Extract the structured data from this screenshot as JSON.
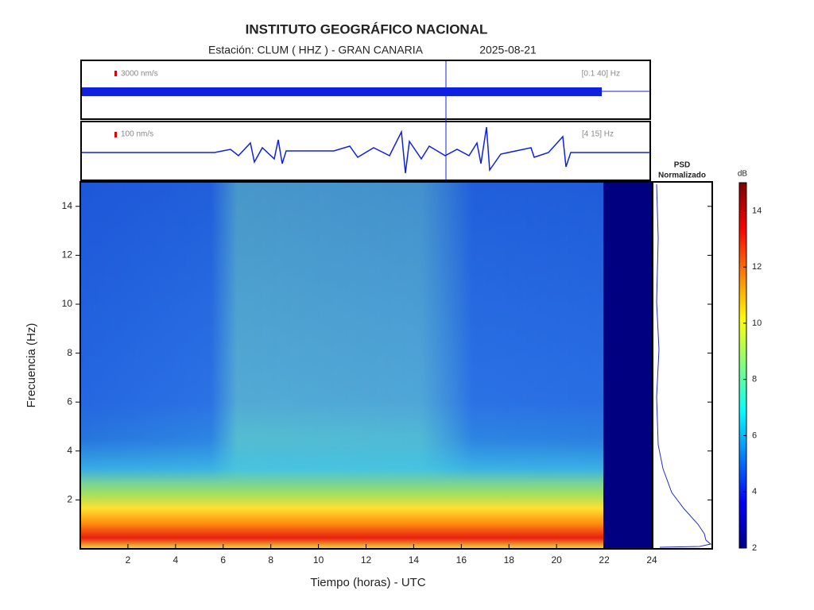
{
  "chart_data": {
    "type": "spectrogram",
    "title": "INSTITUTO GEOGRÁFICO NACIONAL",
    "subtitle": "Estación:  CLUM ( HHZ ) - GRAN CANARIA",
    "date": "2025-08-21",
    "x_label": "Tiempo (horas) - UTC",
    "y_label": "Frecuencia  (Hz)",
    "xlim": [
      0,
      24
    ],
    "xticks": [
      2,
      4,
      6,
      8,
      10,
      12,
      14,
      16,
      18,
      20,
      22,
      24
    ],
    "ylim": [
      0,
      15
    ],
    "yticks": [
      2,
      4,
      6,
      8,
      10,
      12,
      14
    ],
    "traces": [
      {
        "scale": "3000 nm/s",
        "band": "[0.1 40] Hz"
      },
      {
        "scale": "100 nm/s",
        "band": "[4 15] Hz"
      }
    ],
    "psd_title": [
      "PSD",
      "Normalizado"
    ],
    "colorbar": {
      "label": "dB",
      "lim": [
        2,
        15
      ],
      "ticks": [
        2,
        4,
        6,
        8,
        10,
        12,
        14
      ]
    }
  }
}
